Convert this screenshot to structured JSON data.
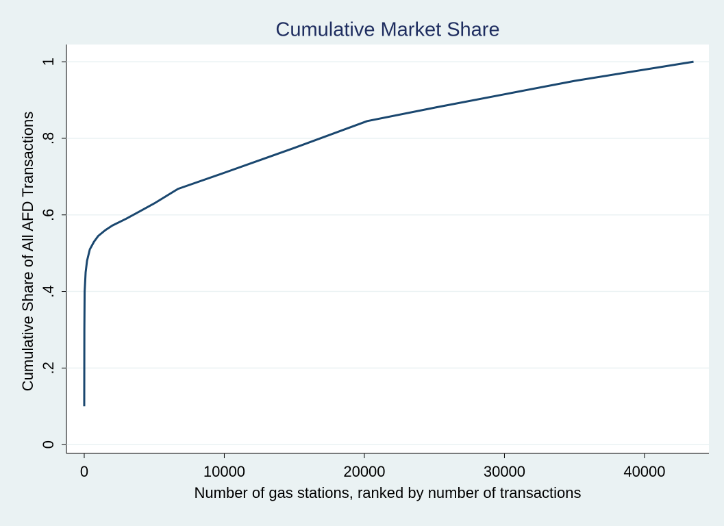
{
  "chart_data": {
    "type": "line",
    "title": "Cumulative Market Share",
    "x_label": "Number of gas stations, ranked by number of transactions",
    "y_label": "Cumulative Share of All AFD Transactions",
    "x": [
      0,
      10,
      30,
      100,
      200,
      400,
      700,
      1000,
      1500,
      2000,
      3000,
      4000,
      5000,
      6700,
      10000,
      15000,
      20200,
      25000,
      30000,
      35000,
      43500
    ],
    "values": [
      0.1,
      0.3,
      0.4,
      0.45,
      0.48,
      0.51,
      0.53,
      0.545,
      0.56,
      0.572,
      0.59,
      0.61,
      0.63,
      0.668,
      0.71,
      0.775,
      0.845,
      0.88,
      0.915,
      0.95,
      1.0
    ],
    "color": "#1a476f",
    "xlim": [
      -1270,
      44600
    ],
    "xticks": [
      0,
      10000,
      20000,
      30000,
      40000
    ],
    "ylim": [
      -0.023,
      1.045
    ],
    "yticks": [
      0,
      {
        "value": 0.2,
        "label": ".2"
      },
      {
        "value": 0.4,
        "label": ".4"
      },
      {
        "value": 0.6,
        "label": ".6"
      },
      {
        "value": 0.8,
        "label": ".8"
      },
      1
    ],
    "grid": true
  }
}
